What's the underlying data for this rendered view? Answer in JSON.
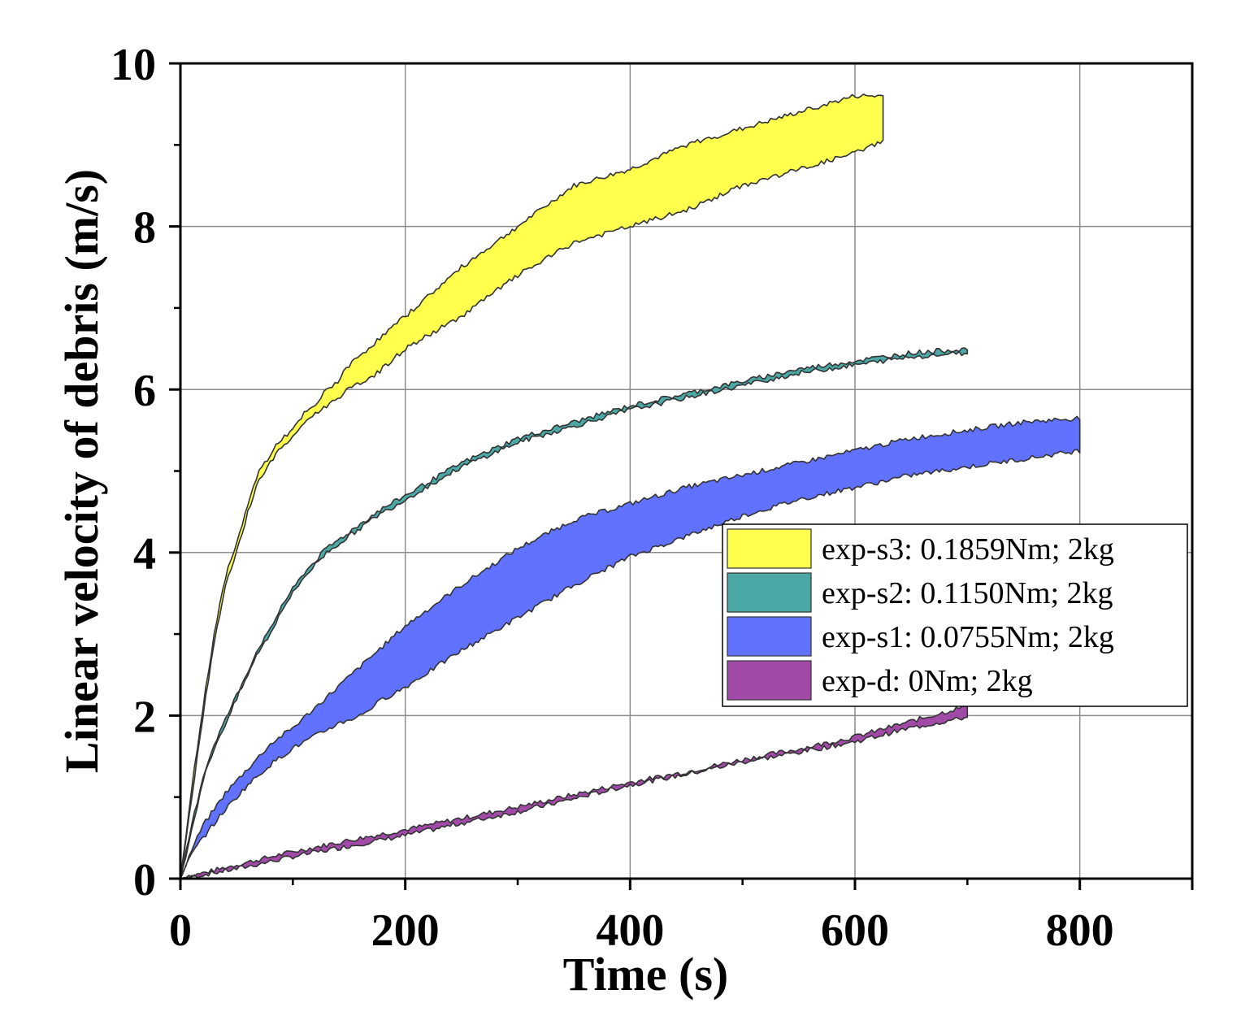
{
  "chart_data": {
    "type": "area",
    "title": "",
    "xlabel": "Time (s)",
    "ylabel": "Linear velocity of debris (m/s)",
    "xlim": [
      0,
      900
    ],
    "ylim": [
      0,
      10
    ],
    "x_ticks": [
      0,
      200,
      400,
      600,
      800
    ],
    "y_ticks": [
      0,
      2,
      4,
      6,
      8,
      10
    ],
    "x_tick_labels": [
      "0",
      "200",
      "400",
      "600",
      "800"
    ],
    "y_tick_labels": [
      "0",
      "2",
      "4",
      "6",
      "8",
      "10"
    ],
    "grid": true,
    "legend_position": "right",
    "series": [
      {
        "name": "exp-s3: 0.1859Nm; 2kg",
        "color": "#ffff4d",
        "x": [
          0,
          10,
          20,
          30,
          40,
          50,
          60,
          70,
          80,
          90,
          100,
          110,
          120,
          130,
          140,
          150,
          175,
          200,
          250,
          300,
          350,
          400,
          450,
          500,
          550,
          600,
          625
        ],
        "lower": [
          0,
          1.0,
          2.0,
          2.9,
          3.6,
          4.0,
          4.5,
          4.9,
          5.1,
          5.3,
          5.4,
          5.6,
          5.7,
          5.8,
          5.9,
          6.0,
          6.2,
          6.5,
          6.9,
          7.4,
          7.8,
          8.0,
          8.2,
          8.5,
          8.7,
          8.9,
          9.05
        ],
        "upper": [
          0,
          1.1,
          2.1,
          3.0,
          3.7,
          4.1,
          4.6,
          5.0,
          5.2,
          5.4,
          5.5,
          5.7,
          5.8,
          6.0,
          6.1,
          6.3,
          6.6,
          6.9,
          7.5,
          8.0,
          8.5,
          8.7,
          9.0,
          9.2,
          9.4,
          9.6,
          9.6
        ]
      },
      {
        "name": "exp-s2: 0.1150Nm; 2kg",
        "color": "#4ca8a5",
        "x": [
          0,
          10,
          20,
          30,
          40,
          50,
          60,
          70,
          80,
          90,
          100,
          110,
          120,
          130,
          150,
          175,
          200,
          250,
          300,
          350,
          400,
          450,
          500,
          550,
          600,
          650,
          700
        ],
        "lower": [
          0,
          0.6,
          1.2,
          1.6,
          1.9,
          2.2,
          2.5,
          2.8,
          3.0,
          3.3,
          3.5,
          3.7,
          3.85,
          4.0,
          4.2,
          4.45,
          4.65,
          5.05,
          5.35,
          5.55,
          5.75,
          5.9,
          6.05,
          6.2,
          6.3,
          6.4,
          6.45
        ],
        "upper": [
          0,
          0.65,
          1.25,
          1.65,
          1.95,
          2.25,
          2.55,
          2.85,
          3.05,
          3.35,
          3.55,
          3.75,
          3.9,
          4.05,
          4.25,
          4.5,
          4.7,
          5.1,
          5.4,
          5.6,
          5.8,
          5.95,
          6.1,
          6.25,
          6.35,
          6.45,
          6.5
        ]
      },
      {
        "name": "exp-s1: 0.0755Nm; 2kg",
        "color": "#6072ff",
        "x": [
          0,
          10,
          20,
          40,
          60,
          80,
          100,
          120,
          140,
          160,
          180,
          200,
          250,
          300,
          350,
          400,
          450,
          500,
          550,
          600,
          650,
          700,
          750,
          800
        ],
        "lower": [
          0,
          0.3,
          0.5,
          0.85,
          1.15,
          1.4,
          1.6,
          1.75,
          1.9,
          2.0,
          2.2,
          2.35,
          2.8,
          3.2,
          3.6,
          3.95,
          4.2,
          4.45,
          4.65,
          4.8,
          4.95,
          5.05,
          5.15,
          5.25
        ],
        "upper": [
          0,
          0.35,
          0.65,
          1.05,
          1.35,
          1.65,
          1.85,
          2.1,
          2.35,
          2.6,
          2.85,
          3.1,
          3.6,
          4.05,
          4.4,
          4.6,
          4.8,
          4.95,
          5.1,
          5.25,
          5.4,
          5.5,
          5.6,
          5.65
        ]
      },
      {
        "name": "exp-d: 0Nm; 2kg",
        "color": "#a24aa8",
        "x": [
          0,
          50,
          100,
          150,
          200,
          250,
          300,
          350,
          400,
          450,
          500,
          550,
          600,
          650,
          700
        ],
        "lower": [
          0,
          0.12,
          0.27,
          0.4,
          0.53,
          0.68,
          0.82,
          0.98,
          1.15,
          1.28,
          1.43,
          1.55,
          1.68,
          1.85,
          1.98
        ],
        "upper": [
          0,
          0.17,
          0.33,
          0.47,
          0.6,
          0.74,
          0.88,
          1.03,
          1.18,
          1.31,
          1.46,
          1.59,
          1.74,
          1.93,
          2.12
        ]
      }
    ]
  }
}
